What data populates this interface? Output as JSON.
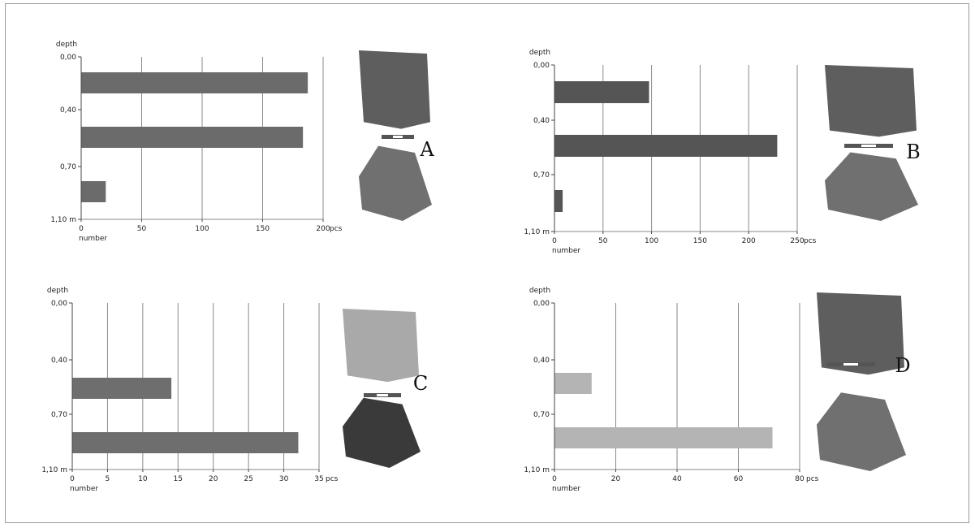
{
  "chart_data": [
    {
      "id": "A",
      "type": "bar",
      "orientation": "horizontal",
      "ylabel": "depth",
      "xlabel": "number",
      "x_unit": "pcs",
      "depth_ticks": [
        "0,00",
        "0,40",
        "0,70",
        "1,10 m"
      ],
      "x_ticks": [
        0,
        50,
        100,
        150,
        200
      ],
      "xlim": [
        0,
        200
      ],
      "values": [
        187,
        183,
        20
      ],
      "bar_color": "#6b6b6b",
      "letter": "A"
    },
    {
      "id": "B",
      "type": "bar",
      "orientation": "horizontal",
      "ylabel": "depth",
      "xlabel": "number",
      "x_unit": "pcs",
      "depth_ticks": [
        "0,00",
        "0,40",
        "0,70",
        "1,10 m"
      ],
      "x_ticks": [
        0,
        50,
        100,
        150,
        200,
        250
      ],
      "xlim": [
        0,
        250
      ],
      "values": [
        97,
        229,
        8
      ],
      "bar_color": "#555555",
      "letter": "B"
    },
    {
      "id": "C",
      "type": "bar",
      "orientation": "horizontal",
      "ylabel": "depth",
      "xlabel": "number",
      "x_unit": "pcs",
      "depth_ticks": [
        "0,00",
        "0,40",
        "0,70",
        "1,10 m"
      ],
      "x_ticks": [
        0,
        5,
        10,
        15,
        20,
        25,
        30,
        35
      ],
      "xlim": [
        0,
        35
      ],
      "values": [
        0,
        14,
        32
      ],
      "bar_color": "#6e6e6e",
      "letter": "C"
    },
    {
      "id": "D",
      "type": "bar",
      "orientation": "horizontal",
      "ylabel": "depth",
      "xlabel": "number",
      "x_unit": "pcs",
      "depth_ticks": [
        "0,00",
        "0,40",
        "0,70",
        "1,10 m"
      ],
      "x_ticks": [
        0,
        20,
        40,
        60,
        80
      ],
      "xlim": [
        0,
        80
      ],
      "values": [
        0,
        12,
        71
      ],
      "bar_color": "#b4b4b4",
      "letter": "D"
    }
  ]
}
